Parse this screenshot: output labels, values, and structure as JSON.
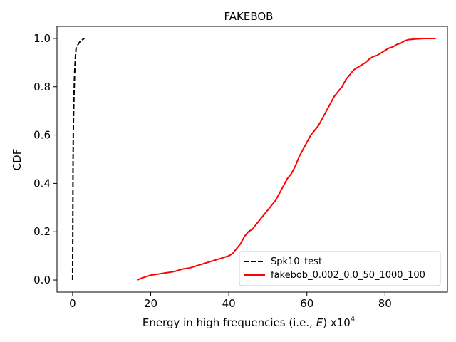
{
  "chart_data": {
    "type": "line",
    "title": "FAKEBOB",
    "xlabel_prefix": "Energy in high frequencies (i.e., ",
    "xlabel_var": "E",
    "xlabel_suffix": ") x10",
    "xlabel_exp": "4",
    "ylabel": "CDF",
    "xlim": [
      -4,
      96
    ],
    "ylim": [
      -0.05,
      1.05
    ],
    "xticks": [
      0,
      20,
      40,
      60,
      80
    ],
    "xtick_labels": [
      "0",
      "20",
      "40",
      "60",
      "80"
    ],
    "yticks": [
      0.0,
      0.2,
      0.4,
      0.6,
      0.8,
      1.0
    ],
    "ytick_labels": [
      "0.0",
      "0.2",
      "0.4",
      "0.6",
      "0.8",
      "1.0"
    ],
    "grid": false,
    "legend_position": "lower-right",
    "series": [
      {
        "name": "Spk10_test",
        "color": "#000000",
        "dash": "dashed",
        "x": [
          0.0,
          0.05,
          0.1,
          0.2,
          0.35,
          0.5,
          0.7,
          0.9,
          1.2,
          1.6,
          2.0,
          2.5,
          3.0
        ],
        "y": [
          0.0,
          0.2,
          0.45,
          0.65,
          0.76,
          0.85,
          0.92,
          0.96,
          0.97,
          0.98,
          0.99,
          0.995,
          1.0
        ]
      },
      {
        "name": "fakebob_0.002_0.0_50_1000_100",
        "color": "#ff0000",
        "dash": "solid",
        "x": [
          16.5,
          18,
          19,
          20,
          22,
          24,
          26,
          28,
          30,
          32,
          34,
          36,
          38,
          40,
          41,
          42,
          43,
          44,
          45,
          46,
          47,
          48,
          49,
          50,
          51,
          52,
          53,
          54,
          55,
          56,
          57,
          58,
          59,
          60,
          61,
          62,
          63,
          64,
          65,
          66,
          67,
          68,
          69,
          70,
          71,
          72,
          73,
          74,
          75,
          76,
          77,
          78,
          79,
          80,
          81,
          82,
          83,
          84,
          85,
          86,
          88,
          90,
          93
        ],
        "y": [
          0.0,
          0.01,
          0.015,
          0.02,
          0.025,
          0.03,
          0.035,
          0.045,
          0.05,
          0.06,
          0.07,
          0.08,
          0.09,
          0.1,
          0.11,
          0.13,
          0.15,
          0.18,
          0.2,
          0.21,
          0.23,
          0.25,
          0.27,
          0.29,
          0.31,
          0.33,
          0.36,
          0.39,
          0.42,
          0.44,
          0.47,
          0.51,
          0.54,
          0.57,
          0.6,
          0.62,
          0.64,
          0.67,
          0.7,
          0.73,
          0.76,
          0.78,
          0.8,
          0.83,
          0.85,
          0.87,
          0.88,
          0.89,
          0.9,
          0.915,
          0.925,
          0.93,
          0.94,
          0.95,
          0.96,
          0.965,
          0.975,
          0.98,
          0.99,
          0.995,
          0.998,
          1.0,
          1.0
        ]
      }
    ]
  }
}
